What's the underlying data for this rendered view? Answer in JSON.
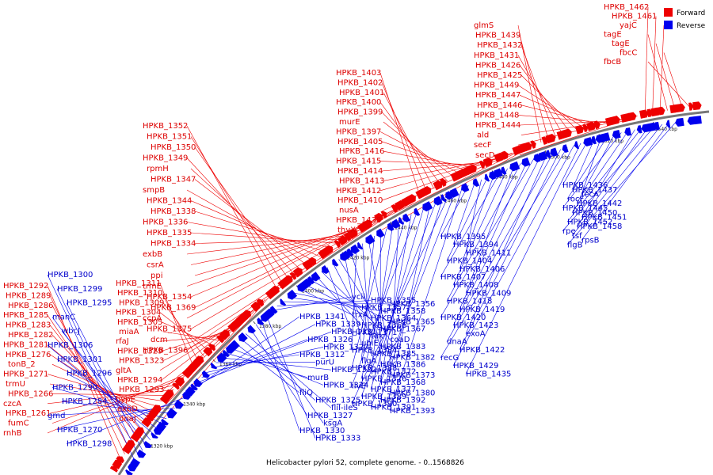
{
  "caption": "Helicobacter pylori 52, complete genome. - 0..1568826",
  "legend": [
    {
      "label": "Forward",
      "color": "#ee0000"
    },
    {
      "label": "Reverse",
      "color": "#0000ee"
    }
  ],
  "ticks": [
    "1320 kbp",
    "1340 kbp",
    "1360 kbp",
    "1380 kbp",
    "1400 kbp",
    "1420 kbp",
    "1440 kbp",
    "1460 kbp",
    "1480 kbp",
    "1500 kbp",
    "1520 kbp",
    "1540 kbp"
  ],
  "forward_labels": [
    "HPKB_1292",
    "HPKB_1289",
    "HPKB_1286",
    "HPKB_1285",
    "HPKB_1283",
    "HPKB_1282",
    "HPKB_1281",
    "HPKB_1276",
    "tonB_2",
    "HPKB_1271",
    "trmU",
    "HPKB_1266",
    "czcA",
    "HPKB_1261",
    "fumC",
    "rnhB",
    "HPKB_1311",
    "HPKB_1310",
    "HPKB_1309",
    "HPKB_1304",
    "HPKB_1305",
    "miaA",
    "rfaJ",
    "HPKB_1329",
    "HPKB_1323",
    "gltA",
    "HPKB_1294",
    "HPKB_1293",
    "hypE",
    "exbD",
    "dnaJ",
    "HPKB_1352",
    "HPKB_1351",
    "HPKB_1350",
    "HPKB_1349",
    "rpmH",
    "HPKB_1347",
    "smpB",
    "HPKB_1344",
    "HPKB_1338",
    "HPKB_1336",
    "HPKB_1335",
    "HPKB_1334",
    "exbB",
    "csrA",
    "ppi",
    "trmE",
    "HPKB_1354",
    "HPKB_1369",
    "ccpA",
    "HPKB_1375",
    "dcm",
    "HPKB_1396",
    "HPKB_1403",
    "HPKB_1402",
    "HPKB_1401",
    "HPKB_1400",
    "HPKB_1399",
    "murE",
    "HPKB_1397",
    "HPKB_1405",
    "HPKB_1416",
    "HPKB_1415",
    "HPKB_1414",
    "HPKB_1413",
    "HPKB_1412",
    "HPKB_1410",
    "nusA",
    "HPKB_1438",
    "thyX",
    "glmS",
    "HPKB_1439",
    "HPKB_1432",
    "HPKB_1431",
    "HPKB_1426",
    "HPKB_1425",
    "HPKB_1449",
    "HPKB_1447",
    "HPKB_1446",
    "HPKB_1448",
    "HPKB_1444",
    "ald",
    "secF",
    "secD",
    "HPKB_1462",
    "HPKB_1461",
    "yajC",
    "tagE",
    "tagE",
    "fbcC",
    "fbcB"
  ],
  "reverse_labels": [
    "HPKB_1300",
    "HPKB_1299",
    "HPKB_1295",
    "manC",
    "wbcJ",
    "HPKB_1306",
    "HPKB_1301",
    "HPKB_1296",
    "HPKB_1290",
    "HPKB_1284",
    "gmd",
    "HPKB_1270",
    "HPKB_1298",
    "HPKB_1341",
    "HPKB_1339",
    "HPKB_1331",
    "HPKB_1326",
    "HPKB_1320",
    "HPKB_1312",
    "purU",
    "HPKB_1322",
    "murB",
    "HPKB_1324",
    "fliQ",
    "HPKB_1325",
    "fliI-ileS",
    "HPKB_1327",
    "ksgA",
    "HPKB_1330",
    "HPKB_1333",
    "ycil",
    "HPKB_1355",
    "HPKB_1356",
    "HPKB_1357",
    "HPKB_1358",
    "trxA",
    "HPKB_1364",
    "HPKB_1365",
    "HPKB_1366",
    "HPKB_1367",
    "HPKB_1371",
    "tdk",
    "coaD",
    "ubiE",
    "HPKB_1383",
    "HPKB_1384",
    "HPKB_1385",
    "HPKB_1382",
    "flgA",
    "HPKB_1386",
    "HPKB_1388",
    "HPKB_1372",
    "HPKB_1373",
    "HPKB_1376",
    "HPKB_1368",
    "ilvE",
    "HPKB_1377",
    "HPKB_1380",
    "HPKB_1389",
    "HPKB_1392",
    "HPKB_1390",
    "HPKB_1391",
    "HPKB_1393",
    "HPKB_1395",
    "HPKB_1394",
    "HPKB_1411",
    "HPKB_1404",
    "HPKB_1406",
    "HPKB_1407",
    "HPKB_1408",
    "HPKB_1409",
    "HPKB_1418",
    "HPKB_1419",
    "HPKB_1420",
    "HPKB_1423",
    "exoA",
    "dnaA",
    "HPKB_1422",
    "recG",
    "HPKB_1429",
    "HPKB_1435",
    "HPKB_1436",
    "HPKB_1437",
    "fecA",
    "rocF",
    "HPKB_1442",
    "HPKB_1445",
    "HPKB_1450",
    "HPKB_1451",
    "HPKB_1452",
    "HPKB_1458",
    "rpe",
    "tsf",
    "rpsB",
    "flgB"
  ]
}
